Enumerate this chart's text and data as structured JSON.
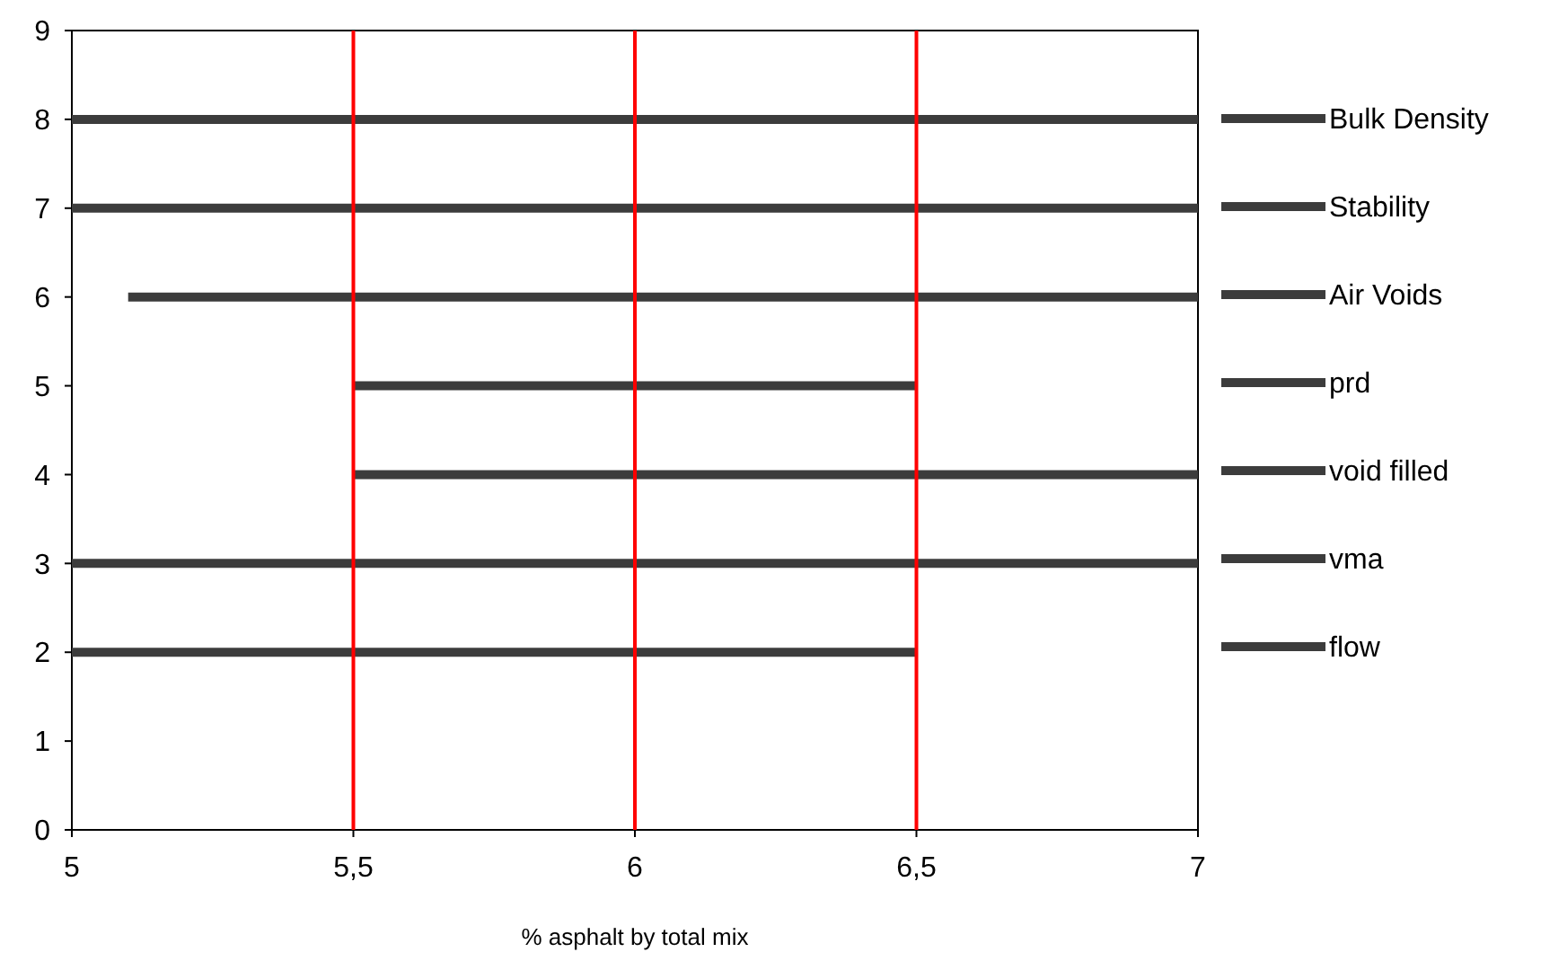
{
  "chart_data": {
    "type": "line",
    "xlabel": "% asphalt by total mix",
    "xlim": [
      5,
      7
    ],
    "xticks": [
      5,
      {
        "value": 5.5,
        "label": "5,5"
      },
      6,
      {
        "value": 6.5,
        "label": "6,5"
      },
      7
    ],
    "ylim": [
      0,
      9
    ],
    "yticks": [
      0,
      1,
      2,
      3,
      4,
      5,
      6,
      7,
      8,
      9
    ],
    "grid": false,
    "legend": "right",
    "series": [
      {
        "name": "Bulk Density",
        "color": "#3c3c3c",
        "x": [
          5,
          7
        ],
        "values": [
          8,
          8
        ]
      },
      {
        "name": "Stability",
        "color": "#3c3c3c",
        "x": [
          5,
          7
        ],
        "values": [
          7,
          7
        ]
      },
      {
        "name": "Air Voids",
        "color": "#3c3c3c",
        "x": [
          5.1,
          7
        ],
        "values": [
          6,
          6
        ]
      },
      {
        "name": "prd",
        "color": "#3c3c3c",
        "x": [
          5.5,
          6.5
        ],
        "values": [
          5,
          5
        ]
      },
      {
        "name": "void filled",
        "color": "#3c3c3c",
        "x": [
          5.5,
          7
        ],
        "values": [
          4,
          4
        ]
      },
      {
        "name": "vma",
        "color": "#3c3c3c",
        "x": [
          5,
          7
        ],
        "values": [
          3,
          3
        ]
      },
      {
        "name": "flow",
        "color": "#3c3c3c",
        "x": [
          5,
          6.5
        ],
        "values": [
          2,
          2
        ]
      }
    ],
    "ref_lines": [
      {
        "axis": "x",
        "value": 5.5,
        "color": "#ff0000"
      },
      {
        "axis": "x",
        "value": 6,
        "color": "#ff0000"
      },
      {
        "axis": "x",
        "value": 6.5,
        "color": "#ff0000"
      }
    ]
  }
}
